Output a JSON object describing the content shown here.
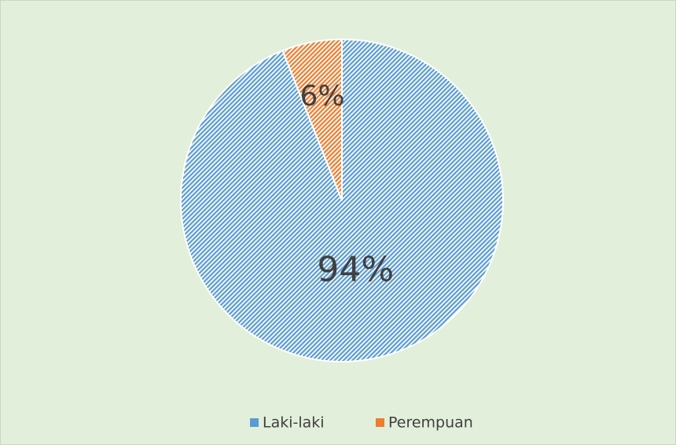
{
  "chart_data": {
    "type": "pie",
    "categories": [
      "Laki-laki",
      "Perempuan"
    ],
    "values": [
      94,
      6
    ],
    "value_labels": [
      "94%",
      "6%"
    ],
    "colors": [
      "#5b9bd5",
      "#ed7d31"
    ],
    "legend": "bottom"
  }
}
